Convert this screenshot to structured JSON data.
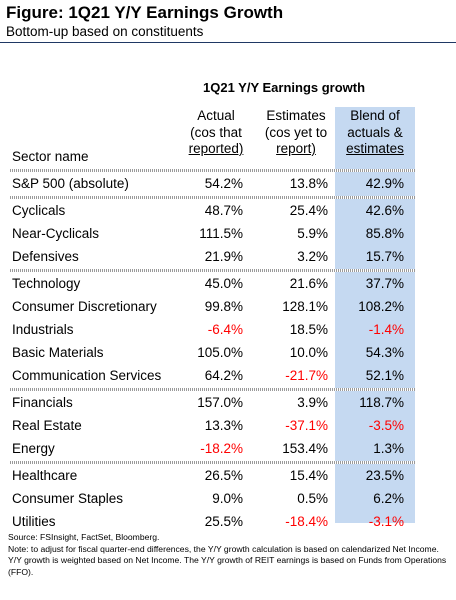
{
  "title": "Figure: 1Q21 Y/Y Earnings Growth",
  "subtitle": "Bottom-up based on constituents",
  "chart_data": {
    "type": "table",
    "title": "1Q21 Y/Y Earnings growth",
    "row_header": "Sector name",
    "columns": [
      {
        "line1": "Actual",
        "line2": "(cos that",
        "line3": "reported)"
      },
      {
        "line1": "Estimates",
        "line2": "(cos yet to",
        "line3": "report)"
      },
      {
        "line1": "Blend of",
        "line2": "actuals &",
        "line3": "estimates"
      }
    ],
    "negative_color": "#ff0000",
    "highlight_color": "#c5d9f1",
    "groups": [
      [
        {
          "name": "S&P 500 (absolute)",
          "values": [
            "54.2%",
            "13.8%",
            "42.9%"
          ]
        }
      ],
      [
        {
          "name": "Cyclicals",
          "values": [
            "48.7%",
            "25.4%",
            "42.6%"
          ]
        },
        {
          "name": "Near-Cyclicals",
          "values": [
            "111.5%",
            "5.9%",
            "85.8%"
          ]
        },
        {
          "name": "Defensives",
          "values": [
            "21.9%",
            "3.2%",
            "15.7%"
          ]
        }
      ],
      [
        {
          "name": "Technology",
          "values": [
            "45.0%",
            "21.6%",
            "37.7%"
          ]
        },
        {
          "name": "Consumer Discretionary",
          "values": [
            "99.8%",
            "128.1%",
            "108.2%"
          ]
        },
        {
          "name": "Industrials",
          "values": [
            "-6.4%",
            "18.5%",
            "-1.4%"
          ]
        },
        {
          "name": "Basic Materials",
          "values": [
            "105.0%",
            "10.0%",
            "54.3%"
          ]
        },
        {
          "name": "Communication Services",
          "values": [
            "64.2%",
            "-21.7%",
            "52.1%"
          ]
        }
      ],
      [
        {
          "name": "Financials",
          "values": [
            "157.0%",
            "3.9%",
            "118.7%"
          ]
        },
        {
          "name": "Real Estate",
          "values": [
            "13.3%",
            "-37.1%",
            "-3.5%"
          ]
        },
        {
          "name": "Energy",
          "values": [
            "-18.2%",
            "153.4%",
            "1.3%"
          ]
        }
      ],
      [
        {
          "name": "Healthcare",
          "values": [
            "26.5%",
            "15.4%",
            "23.5%"
          ]
        },
        {
          "name": "Consumer Staples",
          "values": [
            "9.0%",
            "0.5%",
            "6.2%"
          ]
        },
        {
          "name": "Utilities",
          "values": [
            "25.5%",
            "-18.4%",
            "-3.1%"
          ]
        }
      ]
    ]
  },
  "notes": {
    "source": "Source: FSInsight, FactSet, Bloomberg.",
    "note": "Note: to adjust for fiscal quarter-end differences, the Y/Y growth calculation is based on calendarized Net Income. Y/Y growth is weighted based on Net Income. The Y/Y growth of REIT earnings is based on Funds from Operations (FFO)."
  }
}
